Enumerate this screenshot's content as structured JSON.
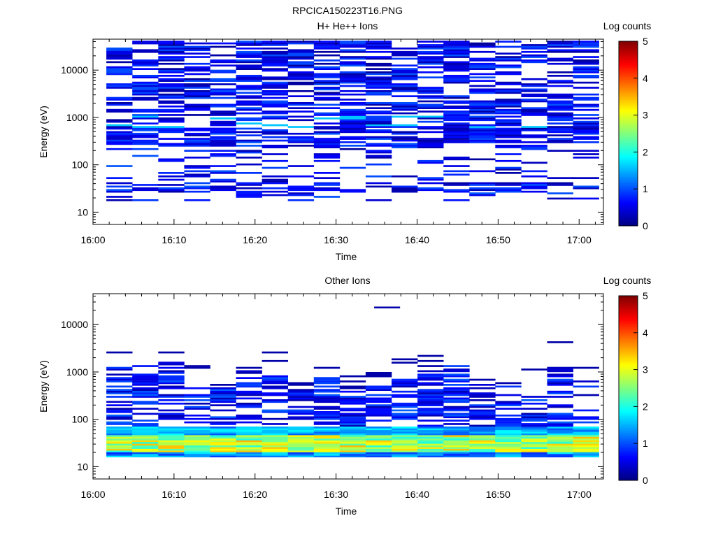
{
  "figure": {
    "title": "RPCICA150223T16.PNG"
  },
  "chart_data": [
    {
      "type": "heatmap",
      "title": "H+ He++ Ions",
      "xlabel": "Time",
      "ylabel": "Energy (eV)",
      "x_ticks": [
        "16:00",
        "16:10",
        "16:20",
        "16:30",
        "16:40",
        "16:50",
        "17:00"
      ],
      "y_ticks": [
        "10",
        "100",
        "1000",
        "10000"
      ],
      "y_scale": "log",
      "x_range": [
        "16:00",
        "17:03"
      ],
      "ylim": [
        5.5,
        45000
      ],
      "colorbar": {
        "label": "Log counts",
        "ticks": [
          "0",
          "1",
          "2",
          "3",
          "4",
          "5"
        ],
        "range": [
          0,
          5
        ]
      },
      "time_bins": [
        "16:03",
        "16:06",
        "16:10",
        "16:13",
        "16:16",
        "16:19",
        "16:23",
        "16:26",
        "16:29",
        "16:32",
        "16:36",
        "16:39",
        "16:42",
        "16:45",
        "16:49",
        "16:52",
        "16:55",
        "16:58",
        "17:01"
      ],
      "energy_range_eV": [
        18,
        43000
      ],
      "typical_log_counts": "0 to 1.2 in most populated bins (mostly dark to mid blue), with scattered empty bins"
    },
    {
      "type": "heatmap",
      "title": "Other Ions",
      "xlabel": "Time",
      "ylabel": "Energy (eV)",
      "x_ticks": [
        "16:00",
        "16:10",
        "16:20",
        "16:30",
        "16:40",
        "16:50",
        "17:00"
      ],
      "y_ticks": [
        "10",
        "100",
        "1000",
        "10000"
      ],
      "y_scale": "log",
      "x_range": [
        "16:00",
        "17:03"
      ],
      "ylim": [
        5.5,
        45000
      ],
      "colorbar": {
        "label": "Log counts",
        "ticks": [
          "0",
          "1",
          "2",
          "3",
          "4",
          "5"
        ],
        "range": [
          0,
          5
        ]
      },
      "time_bins": [
        "16:03",
        "16:06",
        "16:10",
        "16:13",
        "16:16",
        "16:19",
        "16:23",
        "16:26",
        "16:29",
        "16:32",
        "16:36",
        "16:39",
        "16:42",
        "16:45",
        "16:49",
        "16:52",
        "16:55",
        "16:58",
        "17:01"
      ],
      "peak_band_eV": [
        22,
        45
      ],
      "peak_log_counts": 3.5,
      "upper_extent_eV": [
        400,
        3500
      ],
      "isolated_bin": {
        "time": "16:36",
        "energy_eV": 23000
      }
    }
  ]
}
